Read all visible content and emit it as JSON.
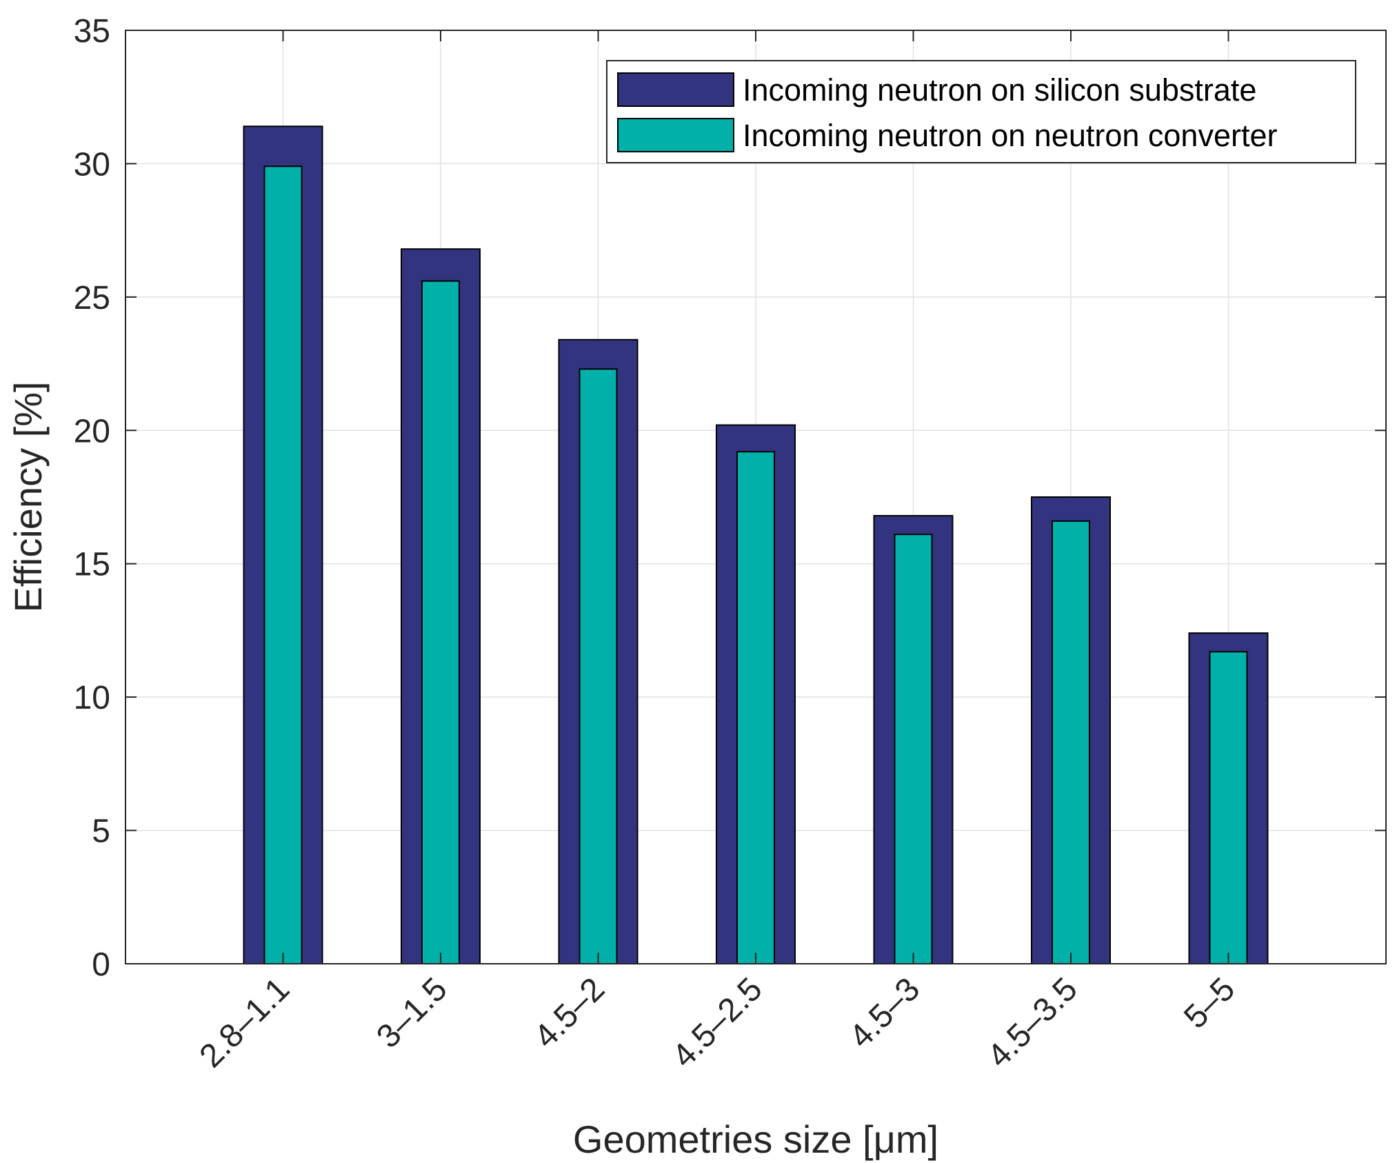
{
  "chart_data": {
    "type": "bar",
    "categories": [
      "2.8–1.1",
      "3–1.5",
      "4.5–2",
      "4.5–2.5",
      "4.5–3",
      "4.5–3.5",
      "5–5"
    ],
    "series": [
      {
        "name": "Incoming neutron on silicon substrate",
        "values": [
          31.4,
          26.8,
          23.4,
          20.2,
          16.8,
          17.5,
          12.4
        ],
        "color": "#333480"
      },
      {
        "name": "Incoming neutron on neutron converter",
        "values": [
          29.9,
          25.6,
          22.3,
          19.2,
          16.1,
          16.6,
          11.7
        ],
        "color": "#00b0a9"
      }
    ],
    "xlabel": "Geometries size [μm]",
    "ylabel": "Efficiency [%]",
    "ylim": [
      0,
      35
    ],
    "yticks": [
      "0",
      "5",
      "10",
      "15",
      "20",
      "25",
      "30",
      "35"
    ],
    "grid": true,
    "legend_position": "top-right"
  }
}
